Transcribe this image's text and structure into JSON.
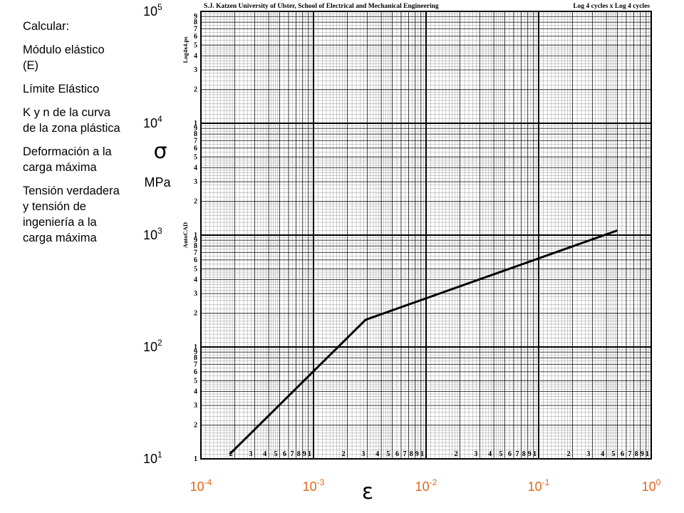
{
  "sidebar": {
    "heading": "Calcular:",
    "items": [
      "Módulo elástico (E)",
      "Límite Elástico",
      "K y n de la curva de la zona plástica",
      "Deformación a la carga máxima",
      "Tensión verdadera y tensión de ingeniería a la carga máxima"
    ]
  },
  "paper": {
    "header_left": "S.J. Katzen    University of Ulster, School of Electrical and Mechanical Engineering",
    "header_right": "Log 4 cycles x Log 4 cycles",
    "side_top": "Log4x4.ps",
    "side_mid": "AutoCAD"
  },
  "colors": {
    "x_tick_labels": "#e0661f",
    "curve": "#000000",
    "grid": "#000000"
  },
  "chart_data": {
    "type": "line",
    "x_scale": "log",
    "y_scale": "log",
    "xlim": [
      0.0001,
      1
    ],
    "ylim": [
      10,
      100000
    ],
    "xlabel": "ε",
    "ylabel": "σ",
    "yunit": "MPa",
    "x_ticks": [
      {
        "base": "10",
        "exp": "-4",
        "value": 0.0001
      },
      {
        "base": "10",
        "exp": "-3",
        "value": 0.001
      },
      {
        "base": "10",
        "exp": "-2",
        "value": 0.01
      },
      {
        "base": "10",
        "exp": "-1",
        "value": 0.1
      },
      {
        "base": "10",
        "exp": "0",
        "value": 1
      }
    ],
    "y_ticks": [
      {
        "base": "10",
        "exp": "1",
        "value": 10
      },
      {
        "base": "10",
        "exp": "2",
        "value": 100
      },
      {
        "base": "10",
        "exp": "3",
        "value": 1000
      },
      {
        "base": "10",
        "exp": "4",
        "value": 10000
      },
      {
        "base": "10",
        "exp": "5",
        "value": 100000
      }
    ],
    "grid": true,
    "series": [
      {
        "x": [
          0.00018,
          0.0029,
          0.5
        ],
        "y": [
          11,
          175,
          1100
        ]
      }
    ]
  }
}
